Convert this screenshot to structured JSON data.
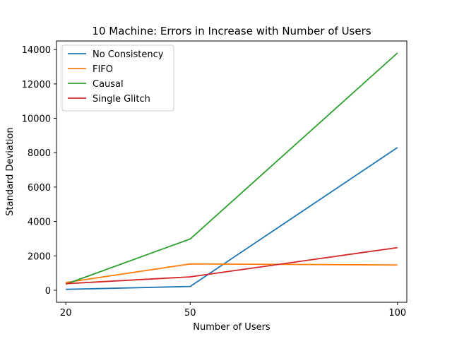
{
  "chart_data": {
    "type": "line",
    "title": "10 Machine: Errors in Increase with Number of Users",
    "xlabel": "Number of Users",
    "ylabel": "Standard Deviation",
    "x": [
      20,
      50,
      100
    ],
    "x_ticks": [
      "20",
      "50",
      "100"
    ],
    "ylim": [
      -700,
      14500
    ],
    "y_ticks": [
      "0",
      "2000",
      "4000",
      "6000",
      "8000",
      "10000",
      "12000",
      "14000"
    ],
    "grid": false,
    "legend_position": "top-left",
    "series": [
      {
        "name": "No Consistency",
        "color": "#1f77b4",
        "values": [
          50,
          220,
          8300
        ]
      },
      {
        "name": "FIFO",
        "color": "#ff7f0e",
        "values": [
          450,
          1530,
          1470
        ]
      },
      {
        "name": "Causal",
        "color": "#2ca02c",
        "values": [
          350,
          2980,
          13800
        ]
      },
      {
        "name": "Single Glitch",
        "color": "#d62728",
        "values": [
          380,
          780,
          2480
        ]
      }
    ]
  }
}
